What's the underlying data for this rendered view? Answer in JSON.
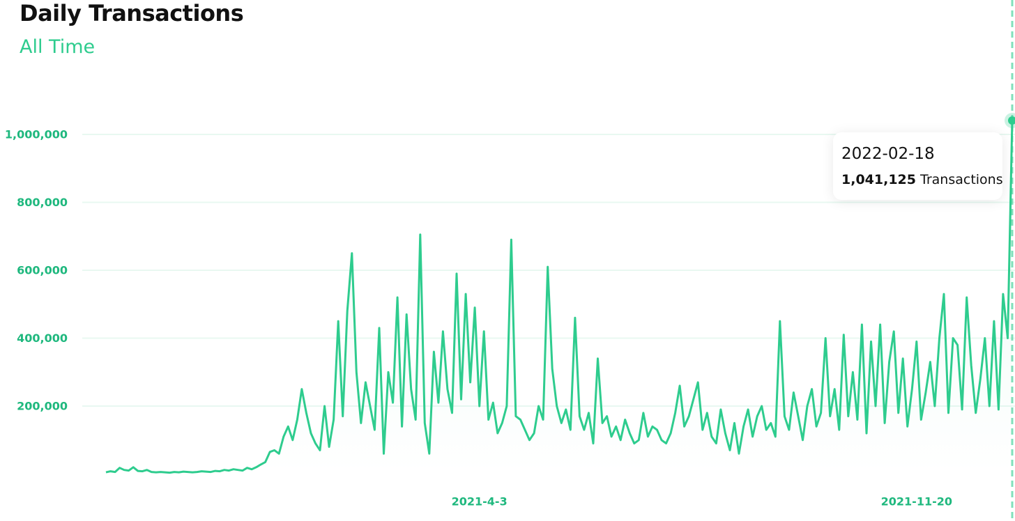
{
  "chart_data": {
    "type": "line",
    "title": "Daily Transactions",
    "subtitle": "All Time",
    "color": "#2ecc8e",
    "grid": true,
    "ylim": [
      0,
      1070000
    ],
    "yticks": [
      {
        "value": 200000,
        "label": "200,000"
      },
      {
        "value": 400000,
        "label": "400,000"
      },
      {
        "value": 600000,
        "label": "600,000"
      },
      {
        "value": 800000,
        "label": "800,000"
      },
      {
        "value": 1000000,
        "label": "1,000,000"
      }
    ],
    "categories": [
      null,
      null,
      null,
      null,
      null,
      null,
      null,
      null,
      null,
      null,
      null,
      null,
      null,
      null,
      null,
      null,
      null,
      null,
      null,
      null,
      null,
      null,
      null,
      null,
      null,
      null,
      null,
      null,
      null,
      null,
      null,
      null,
      null,
      null,
      null,
      null,
      null,
      null,
      null,
      null,
      null,
      null,
      null,
      null,
      null,
      null,
      null,
      null,
      null,
      null,
      null,
      null,
      null,
      null,
      null,
      null,
      null,
      null,
      null,
      null,
      null,
      null,
      null,
      null,
      null,
      null,
      null,
      null,
      null,
      null,
      null,
      null,
      null,
      null,
      null,
      null,
      null,
      null,
      null,
      null,
      null,
      null,
      "2021-4-3",
      null,
      null,
      null,
      null,
      null,
      null,
      null,
      null,
      null,
      null,
      null,
      null,
      null,
      null,
      null,
      null,
      null,
      null,
      null,
      null,
      null,
      null,
      null,
      null,
      null,
      null,
      null,
      null,
      null,
      null,
      null,
      null,
      null,
      null,
      null,
      null,
      null,
      null,
      null,
      null,
      null,
      null,
      null,
      null,
      null,
      null,
      null,
      null,
      null,
      null,
      null,
      null,
      null,
      null,
      null,
      null,
      null,
      null,
      null,
      null,
      null,
      null,
      null,
      null,
      null,
      null,
      null,
      null,
      null,
      null,
      null,
      null,
      null,
      null,
      null,
      null,
      null,
      null,
      null,
      null,
      null,
      null,
      null,
      null,
      null,
      null,
      null,
      null,
      null,
      null,
      null,
      null,
      null,
      null,
      null,
      "2021-11-20",
      null,
      null,
      null,
      null,
      null,
      null,
      null,
      null,
      null,
      null,
      null,
      null,
      null,
      null,
      null,
      null,
      null,
      null,
      null,
      null,
      null
    ],
    "values": [
      5000,
      8000,
      6000,
      18000,
      12000,
      10000,
      20000,
      9000,
      8000,
      12000,
      6000,
      5000,
      6000,
      5000,
      4000,
      6000,
      5000,
      7000,
      6000,
      5000,
      6000,
      8000,
      7000,
      6000,
      9000,
      8000,
      12000,
      10000,
      14000,
      12000,
      10000,
      18000,
      14000,
      20000,
      28000,
      35000,
      65000,
      70000,
      60000,
      110000,
      140000,
      100000,
      160000,
      250000,
      180000,
      120000,
      90000,
      70000,
      200000,
      80000,
      160000,
      450000,
      170000,
      480000,
      650000,
      300000,
      150000,
      270000,
      200000,
      130000,
      430000,
      60000,
      300000,
      210000,
      520000,
      140000,
      470000,
      250000,
      160000,
      705000,
      150000,
      60000,
      360000,
      210000,
      420000,
      250000,
      180000,
      590000,
      220000,
      530000,
      270000,
      490000,
      200000,
      420000,
      160000,
      210000,
      120000,
      150000,
      200000,
      690000,
      170000,
      160000,
      130000,
      100000,
      120000,
      200000,
      160000,
      610000,
      310000,
      200000,
      150000,
      190000,
      130000,
      460000,
      170000,
      130000,
      180000,
      90000,
      340000,
      150000,
      170000,
      110000,
      140000,
      100000,
      160000,
      120000,
      90000,
      100000,
      180000,
      110000,
      140000,
      130000,
      100000,
      90000,
      120000,
      180000,
      260000,
      140000,
      170000,
      220000,
      270000,
      130000,
      180000,
      110000,
      90000,
      190000,
      120000,
      70000,
      150000,
      60000,
      140000,
      190000,
      110000,
      170000,
      200000,
      130000,
      150000,
      110000,
      450000,
      170000,
      130000,
      240000,
      170000,
      100000,
      200000,
      250000,
      140000,
      180000,
      400000,
      170000,
      250000,
      130000,
      410000,
      170000,
      300000,
      160000,
      440000,
      120000,
      390000,
      200000,
      440000,
      150000,
      330000,
      420000,
      180000,
      340000,
      140000,
      250000,
      390000,
      160000,
      240000,
      330000,
      200000,
      400000,
      530000,
      180000,
      400000,
      380000,
      190000,
      520000,
      320000,
      180000,
      280000,
      400000,
      200000,
      450000,
      190000,
      530000,
      400000,
      1041125
    ],
    "tooltip": {
      "date": "2022-02-18",
      "value": 1041125,
      "value_label": "1,041,125",
      "unit": "Transactions"
    }
  }
}
